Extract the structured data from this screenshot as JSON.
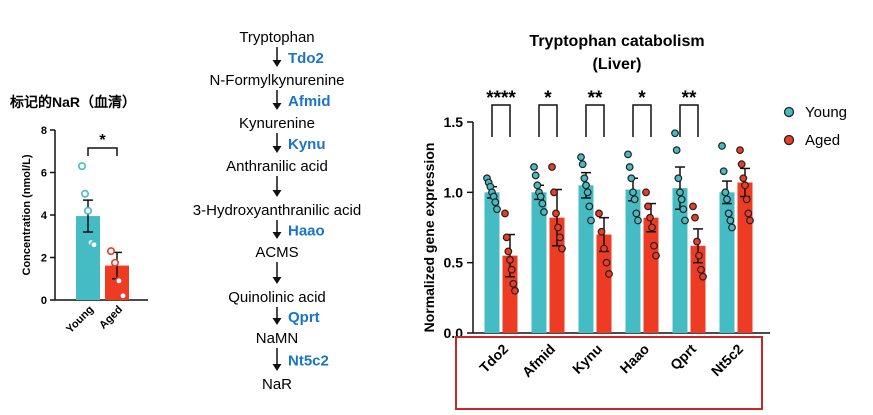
{
  "palette": {
    "young": "#45bcc4",
    "aged": "#ee3b24",
    "gene_label": "#1a75c8",
    "highlight_box": "#c62828",
    "dot_fill": "#ffffff",
    "ink": "#111111"
  },
  "left_panel": {
    "title": "标记的NaR（血清）",
    "significance": "*",
    "chart_data": {
      "type": "bar",
      "categories": [
        "Young",
        "Aged"
      ],
      "values": [
        3.95,
        1.62
      ],
      "errors": [
        0.75,
        0.62
      ],
      "points": [
        [
          6.3,
          5.0,
          4.2,
          2.7,
          2.6
        ],
        [
          2.3,
          1.75,
          0.9,
          0.2
        ]
      ],
      "ylabel": "Concentration (nmol/L)",
      "xlabel": "",
      "ylim": [
        0,
        8
      ],
      "yticks": [
        "0",
        "2",
        "4",
        "6",
        "8"
      ]
    }
  },
  "pathway": {
    "metabolites": [
      "Tryptophan",
      "N-Formylkynurenine",
      "Kynurenine",
      "Anthranilic acid",
      "3-Hydroxyanthranilic acid",
      "ACMS",
      "Quinolinic acid",
      "NaMN",
      "NaR"
    ],
    "enzymes": [
      "Tdo2",
      "Afmid",
      "Kynu",
      "",
      "Haao",
      "",
      "Qprt",
      "Nt5c2"
    ]
  },
  "right_panel": {
    "chart_data": {
      "type": "bar",
      "title": "Tryptophan catabolism",
      "subtitle": "(Liver)",
      "ylabel": "Normalized gene expression",
      "xlabel": "",
      "ylim": [
        0,
        1.5
      ],
      "yticks": [
        "0.0",
        "0.5",
        "1.0",
        "1.5"
      ],
      "categories": [
        "Tdo2",
        "Afmid",
        "Kynu",
        "Haao",
        "Qprt",
        "Nt5c2"
      ],
      "significance": [
        "****",
        "*",
        "**",
        "*",
        "**",
        ""
      ],
      "legend": [
        "Young",
        "Aged"
      ],
      "legend_position": "top-right",
      "series": [
        {
          "name": "Young",
          "values": [
            1.0,
            1.0,
            1.05,
            1.02,
            1.03,
            1.0
          ],
          "errors": [
            0.04,
            0.05,
            0.09,
            0.08,
            0.15,
            0.08
          ],
          "points": [
            [
              1.1,
              1.07,
              1.04,
              1.0,
              0.97,
              0.93,
              0.88
            ],
            [
              1.18,
              1.12,
              1.05,
              1.0,
              0.97,
              0.92,
              0.86
            ],
            [
              1.25,
              1.2,
              1.1,
              1.05,
              1.0,
              0.9,
              0.8
            ],
            [
              1.27,
              1.18,
              1.1,
              1.0,
              0.95,
              0.85,
              0.8
            ],
            [
              1.42,
              1.3,
              1.1,
              1.0,
              0.95,
              0.88,
              0.8
            ],
            [
              1.33,
              1.15,
              1.0,
              0.95,
              0.85,
              0.8,
              0.75
            ]
          ]
        },
        {
          "name": "Aged",
          "values": [
            0.55,
            0.82,
            0.7,
            0.82,
            0.62,
            1.07
          ],
          "errors": [
            0.15,
            0.2,
            0.12,
            0.1,
            0.12,
            0.1
          ],
          "points": [
            [
              0.85,
              0.68,
              0.58,
              0.52,
              0.45,
              0.35,
              0.3
            ],
            [
              1.18,
              1.0,
              0.85,
              0.75,
              0.68,
              0.6
            ],
            [
              0.85,
              0.72,
              0.6,
              0.5,
              0.42
            ],
            [
              1.0,
              0.9,
              0.82,
              0.75,
              0.62,
              0.55
            ],
            [
              0.9,
              0.82,
              0.65,
              0.55,
              0.45,
              0.4
            ],
            [
              1.3,
              1.2,
              1.1,
              1.05,
              0.95,
              0.85,
              0.8
            ]
          ]
        }
      ]
    }
  }
}
